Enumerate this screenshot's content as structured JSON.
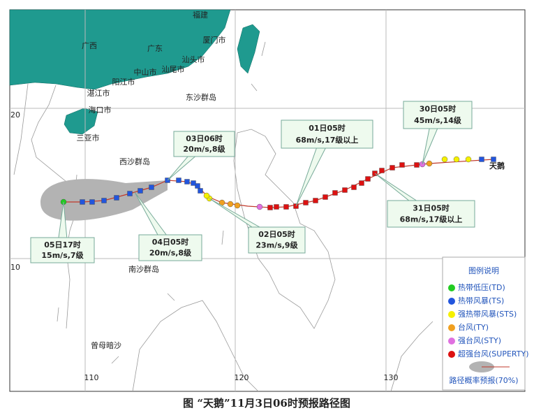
{
  "map": {
    "places": [
      "福建",
      "厦门市",
      "广西",
      "广东",
      "汕头市",
      "中山市",
      "汕尾市",
      "阳江市",
      "湛江市",
      "东沙群岛",
      "海口市",
      "三亚市",
      "西沙群岛",
      "南沙群岛",
      "曾母暗沙",
      "天鹅"
    ],
    "lat_labels": [
      "20",
      "10"
    ],
    "lon_labels": [
      "110",
      "120",
      "130"
    ],
    "callouts": [
      {
        "time": "03日06时",
        "info": "20m/s,8级"
      },
      {
        "time": "01日05时",
        "info": "68m/s,17级以上"
      },
      {
        "time": "30日05时",
        "info": "45m/s,14级"
      },
      {
        "time": "31日05时",
        "info": "68m/s,17级以上"
      },
      {
        "time": "02日05时",
        "info": "23m/s,9级"
      },
      {
        "time": "04日05时",
        "info": "20m/s,8级"
      },
      {
        "time": "05日17时",
        "info": "15m/s,7级"
      }
    ],
    "legend": {
      "title": "图例说明",
      "items": [
        "热带低压(TD)",
        "热带风暴(TS)",
        "强热带风暴(STS)",
        "台风(TY)",
        "强台风(STY)",
        "超强台风(SUPERTY)"
      ],
      "cone": "路径概率预报(70%)"
    },
    "caption": "图 “天鹅”11月3日06时预报路径图"
  }
}
